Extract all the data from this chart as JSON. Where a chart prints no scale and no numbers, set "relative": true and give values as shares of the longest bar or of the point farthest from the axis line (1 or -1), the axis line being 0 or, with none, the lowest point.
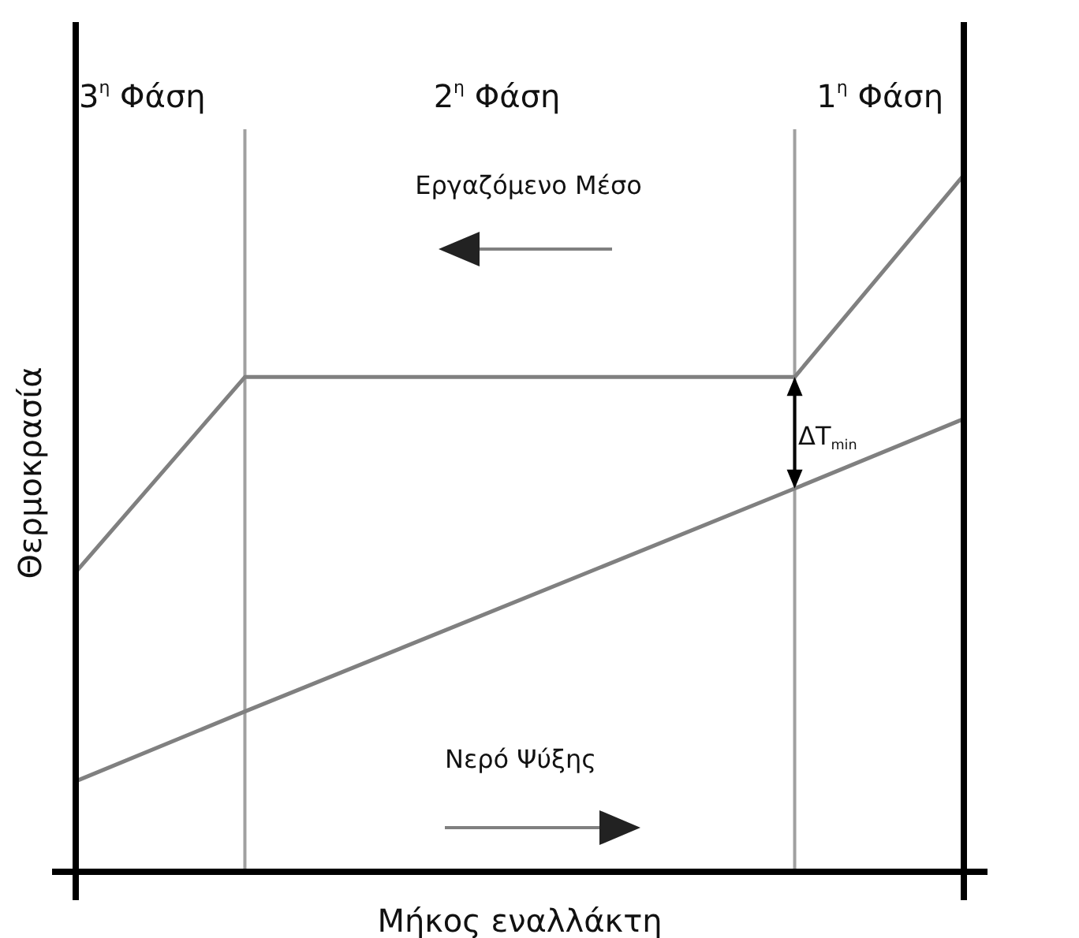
{
  "chart_data": {
    "type": "line",
    "relative": true,
    "xlabel": "Μήκος εναλλάκτη",
    "ylabel": "Θερμοκρασία",
    "marker": "none",
    "grid": "x",
    "line_style": "solid",
    "categories": [
      null,
      null,
      null,
      null,
      null,
      null,
      null,
      null,
      null,
      null,
      null,
      null,
      null,
      null,
      null,
      null,
      null,
      null,
      null,
      null,
      null,
      null
    ],
    "series": [
      {
        "color": "#808080",
        "values": [
          0.43,
          null,
          null,
          null,
          0.71,
          null,
          null,
          null,
          null,
          null,
          null,
          null,
          null,
          null,
          null,
          null,
          null,
          0.71,
          null,
          null,
          null,
          1
        ]
      },
      {
        "color": "#808080",
        "values": [
          0.13,
          null,
          null,
          null,
          0.23,
          null,
          null,
          null,
          null,
          null,
          null,
          null,
          null,
          null,
          null,
          null,
          null,
          0.55,
          null,
          null,
          null,
          0.65
        ]
      }
    ],
    "annotations": [
      "3$^{η}$ Φάση",
      "2$^{η}$ Φάση",
      "1$^{η}$ Φάση",
      "Εργαζόμενο Μέσο",
      "Νερό Ψύξης",
      "ΔT$_{min}$"
    ]
  }
}
